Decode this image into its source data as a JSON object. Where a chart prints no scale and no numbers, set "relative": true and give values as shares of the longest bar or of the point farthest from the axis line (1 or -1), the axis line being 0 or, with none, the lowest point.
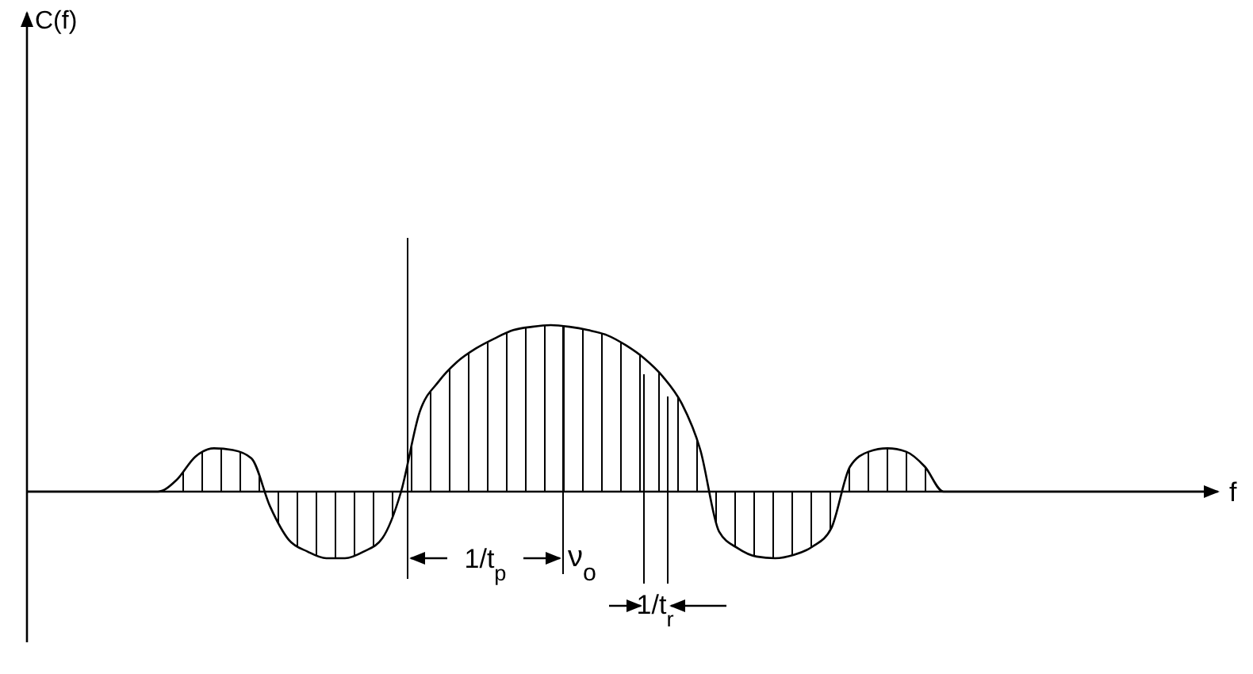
{
  "chart_data": {
    "type": "area",
    "relative": true,
    "xlabel": "f",
    "color": "#000000",
    "categories": [
      null,
      null,
      null,
      null,
      null,
      null,
      null,
      null,
      null,
      null,
      null,
      null,
      null,
      null,
      null,
      null,
      null,
      null,
      null,
      null,
      null,
      null,
      null,
      null,
      null,
      null,
      null,
      null,
      null,
      null,
      null,
      null,
      null,
      null,
      null,
      null,
      null,
      null,
      null,
      null,
      null,
      null,
      null,
      null,
      null,
      null,
      null,
      null,
      null,
      null,
      null,
      null,
      null,
      null,
      null,
      null,
      null,
      null,
      null,
      null,
      null,
      null,
      null,
      null
    ],
    "values": [
      0,
      0,
      0,
      0,
      0,
      0,
      0,
      0,
      0.07,
      0.21,
      0.26,
      0.25,
      0.2,
      -0.09,
      -0.29,
      -0.36,
      -0.4,
      -0.4,
      -0.36,
      -0.28,
      0,
      0.48,
      0.66,
      0.78,
      0.86,
      0.92,
      0.97,
      0.99,
      1,
      0.99,
      0.97,
      0.94,
      0.88,
      0.8,
      0.69,
      0.53,
      0.25,
      -0.24,
      -0.34,
      -0.39,
      -0.4,
      -0.38,
      -0.33,
      -0.22,
      0.15,
      0.24,
      0.26,
      0.24,
      0.15,
      0,
      0,
      0,
      0,
      0,
      0,
      0,
      0,
      0,
      0,
      0,
      0,
      0,
      0,
      0
    ],
    "annotations": [
      "1/t$_{p}$",
      "ν$_{o}$",
      "1/t$_{r}$",
      "C(f)"
    ]
  }
}
